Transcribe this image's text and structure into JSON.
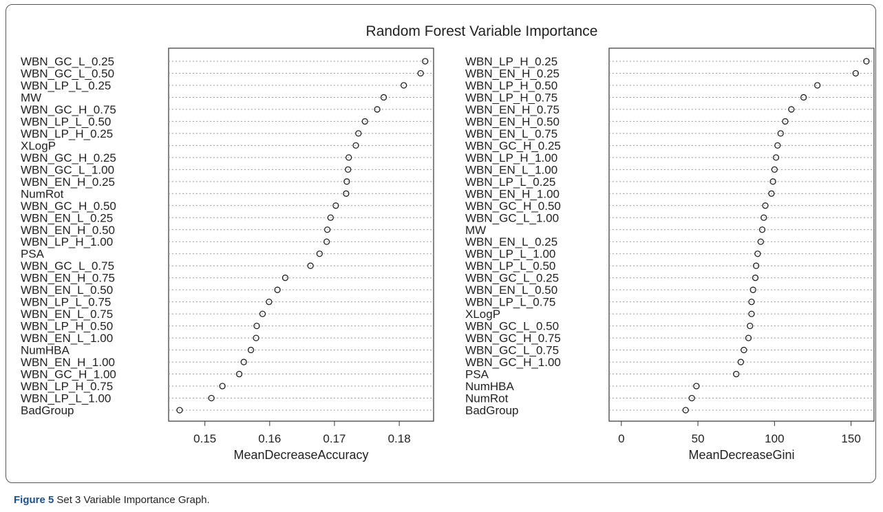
{
  "title": "Random Forest Variable Importance",
  "caption_label": "Figure 5",
  "caption": "Set 3 Variable Importance Graph.",
  "chart_data": [
    {
      "type": "dot",
      "xlabel": "MeanDecreaseAccuracy",
      "xlim": [
        0.1444,
        0.1853
      ],
      "xticks": [
        0.15,
        0.16,
        0.17,
        0.18
      ],
      "categories": [
        "WBN_GC_L_0.25",
        "WBN_GC_L_0.50",
        "WBN_LP_L_0.25",
        "MW",
        "WBN_GC_H_0.75",
        "WBN_LP_L_0.50",
        "WBN_LP_H_0.25",
        "XLogP",
        "WBN_GC_H_0.25",
        "WBN_GC_L_1.00",
        "WBN_EN_H_0.25",
        "NumRot",
        "WBN_GC_H_0.50",
        "WBN_EN_L_0.25",
        "WBN_EN_H_0.50",
        "WBN_LP_H_1.00",
        "PSA",
        "WBN_GC_L_0.75",
        "WBN_EN_H_0.75",
        "WBN_EN_L_0.50",
        "WBN_LP_L_0.75",
        "WBN_EN_L_0.75",
        "WBN_LP_H_0.50",
        "WBN_EN_L_1.00",
        "NumHBA",
        "WBN_EN_H_1.00",
        "WBN_GC_H_1.00",
        "WBN_LP_H_0.75",
        "WBN_LP_L_1.00",
        "BadGroup"
      ],
      "values": [
        0.184,
        0.1833,
        0.1807,
        0.1776,
        0.1766,
        0.1747,
        0.1737,
        0.1733,
        0.1722,
        0.1721,
        0.1719,
        0.1718,
        0.1702,
        0.1694,
        0.1689,
        0.1688,
        0.1677,
        0.1663,
        0.1624,
        0.1612,
        0.1599,
        0.1589,
        0.158,
        0.1579,
        0.1571,
        0.156,
        0.1553,
        0.1527,
        0.151,
        0.1461
      ]
    },
    {
      "type": "dot",
      "xlabel": "MeanDecreaseGini",
      "xlim": [
        -8,
        165
      ],
      "xticks": [
        0,
        50,
        100,
        150
      ],
      "categories": [
        "WBN_LP_H_0.25",
        "WBN_EN_H_0.25",
        "WBN_LP_H_0.50",
        "WBN_LP_H_0.75",
        "WBN_EN_H_0.75",
        "WBN_EN_H_0.50",
        "WBN_EN_L_0.75",
        "WBN_GC_H_0.25",
        "WBN_LP_H_1.00",
        "WBN_EN_L_1.00",
        "WBN_LP_L_0.25",
        "WBN_EN_H_1.00",
        "WBN_GC_H_0.50",
        "WBN_GC_L_1.00",
        "MW",
        "WBN_EN_L_0.25",
        "WBN_LP_L_1.00",
        "WBN_LP_L_0.50",
        "WBN_GC_L_0.25",
        "WBN_EN_L_0.50",
        "WBN_LP_L_0.75",
        "XLogP",
        "WBN_GC_L_0.50",
        "WBN_GC_H_0.75",
        "WBN_GC_L_0.75",
        "WBN_GC_H_1.00",
        "PSA",
        "NumHBA",
        "NumRot",
        "BadGroup"
      ],
      "values": [
        160,
        153,
        128,
        119,
        111,
        107,
        104,
        102,
        101,
        100,
        99,
        98,
        94,
        93,
        92,
        91,
        89,
        88,
        87.5,
        86,
        85,
        85,
        84,
        83,
        80,
        78,
        75,
        49,
        46,
        42
      ]
    }
  ]
}
